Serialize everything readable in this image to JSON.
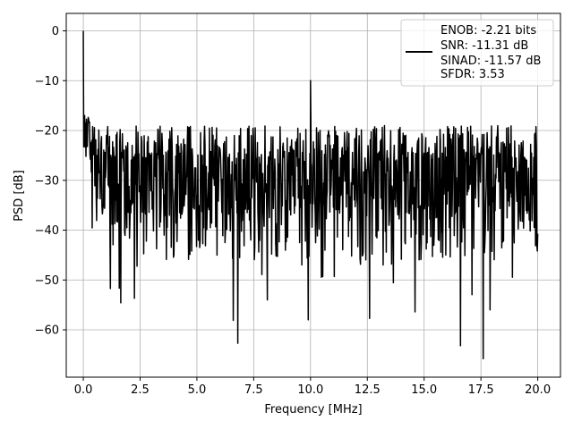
{
  "chart_data": {
    "type": "line",
    "xlabel": "Frequency [MHz]",
    "ylabel": "PSD [dB]",
    "xlim": [
      -0.75,
      21.0
    ],
    "ylim": [
      -69.5,
      3.5
    ],
    "xticks": [
      0.0,
      2.5,
      5.0,
      7.5,
      10.0,
      12.5,
      15.0,
      17.5,
      20.0
    ],
    "xtick_labels": [
      "0.0",
      "2.5",
      "5.0",
      "7.5",
      "10.0",
      "12.5",
      "15.0",
      "17.5",
      "20.0"
    ],
    "yticks": [
      0,
      -10,
      -20,
      -30,
      -40,
      -50,
      -60
    ],
    "ytick_labels": [
      "0",
      "−10",
      "−20",
      "−30",
      "−40",
      "−50",
      "−60"
    ],
    "grid": true,
    "legend_position": "top-right",
    "legend_lines": [
      "ENOB: -2.21 bits",
      "SNR: -11.31 dB",
      "SINAD: -11.57 dB",
      "SFDR: 3.53"
    ],
    "series_color": "#000000",
    "series": [
      {
        "name": "ENOB: -2.21 bits",
        "x_start": 0.0,
        "x_end": 20.0,
        "points": 1024,
        "peak_at_0": 0.0,
        "spur_frequency": 10.0,
        "spur_level": -10.0,
        "noise_band_upper": -19.0,
        "noise_band_lower": -42.0,
        "notable_dips": [
          {
            "x": 1.65,
            "y": -54.6
          },
          {
            "x": 2.25,
            "y": -53.7
          },
          {
            "x": 6.6,
            "y": -58.1
          },
          {
            "x": 6.8,
            "y": -62.7
          },
          {
            "x": 8.1,
            "y": -54.0
          },
          {
            "x": 9.9,
            "y": -58.0
          },
          {
            "x": 12.6,
            "y": -57.7
          },
          {
            "x": 14.6,
            "y": -56.4
          },
          {
            "x": 16.6,
            "y": -63.2
          },
          {
            "x": 17.6,
            "y": -65.8
          },
          {
            "x": 17.9,
            "y": -56.0
          }
        ]
      }
    ]
  }
}
